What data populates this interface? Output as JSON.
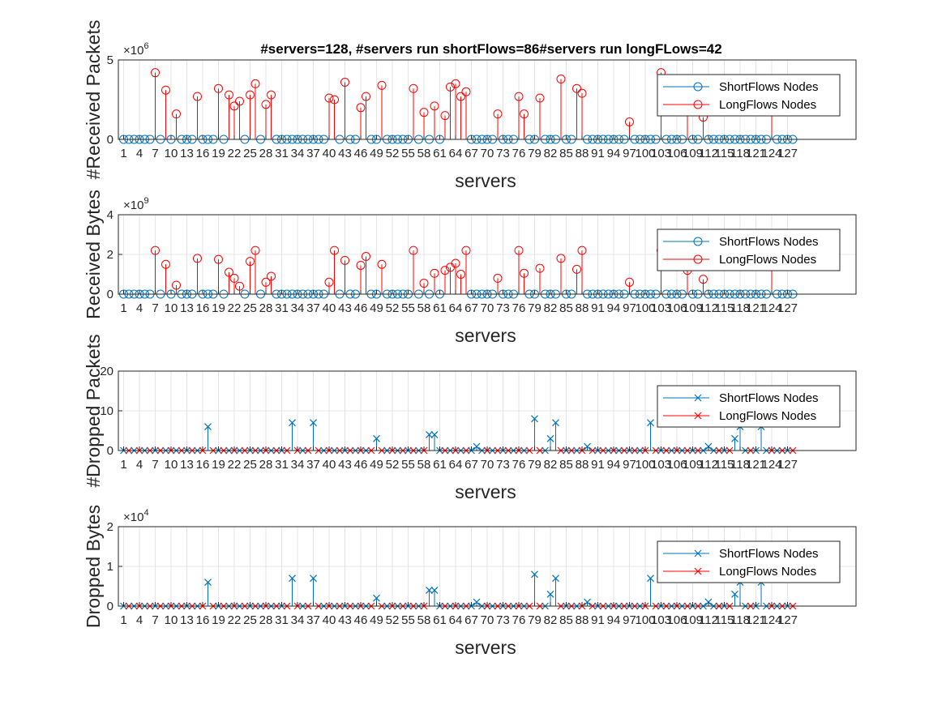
{
  "figure_title": "#servers=128,  #servers run shortFlows=86#servers run longFLows=42",
  "colors": {
    "short": "#0072BD",
    "long": "#FF0000",
    "axis": "#262626",
    "grid": "#dfdfdf"
  },
  "legend": {
    "short": "ShortFlows Nodes",
    "long": "LongFlows Nodes"
  },
  "chart_data": [
    {
      "type": "stem",
      "title": "#servers=128,  #servers run shortFlows=86#servers run longFLows=42",
      "xlabel": "servers",
      "ylabel": "#Received Packets",
      "exponent_label": "×10^6",
      "exp_base": "×10",
      "exp_power": "6",
      "marker": "circle",
      "xlim": [
        0,
        140
      ],
      "ylim": [
        0,
        5
      ],
      "yticks": [
        "0",
        "5"
      ],
      "xticks": [
        "1",
        "4",
        "7",
        "10",
        "13",
        "16",
        "19",
        "22",
        "25",
        "28",
        "31",
        "34",
        "37",
        "40",
        "43",
        "46",
        "49",
        "52",
        "55",
        "58",
        "61",
        "64",
        "67",
        "70",
        "73",
        "76",
        "79",
        "82",
        "85",
        "88",
        "91",
        "94",
        "97",
        "100",
        "103",
        "106",
        "109",
        "112",
        "115",
        "118",
        "121",
        "124",
        "127"
      ],
      "legend_position": "top-right",
      "series": [
        {
          "name": "LongFlows Nodes",
          "x": [
            7,
            9,
            11,
            15,
            19,
            21,
            22,
            23,
            25,
            26,
            28,
            29,
            40,
            41,
            43,
            46,
            47,
            50,
            56,
            58,
            60,
            62,
            63,
            64,
            65,
            66,
            72,
            76,
            77,
            80,
            84,
            87,
            88,
            97,
            103,
            108,
            111,
            124
          ],
          "y": [
            4.2,
            3.1,
            1.6,
            2.7,
            3.2,
            2.8,
            2.1,
            2.4,
            2.8,
            3.5,
            2.2,
            2.8,
            2.6,
            2.5,
            3.6,
            2.0,
            2.7,
            3.4,
            3.2,
            1.7,
            2.1,
            1.5,
            3.3,
            3.5,
            2.7,
            3.0,
            1.6,
            2.7,
            1.6,
            2.6,
            3.8,
            3.2,
            2.9,
            1.1,
            4.2,
            2.1,
            1.4,
            2.0
          ]
        }
      ]
    },
    {
      "type": "stem",
      "xlabel": "servers",
      "ylabel": "Received Bytes",
      "exponent_label": "×10^9",
      "exp_base": "×10",
      "exp_power": "9",
      "marker": "circle",
      "xlim": [
        0,
        140
      ],
      "ylim": [
        0,
        4
      ],
      "yticks": [
        "0",
        "2",
        "4"
      ],
      "xticks": [
        "1",
        "4",
        "7",
        "10",
        "13",
        "16",
        "19",
        "22",
        "25",
        "28",
        "31",
        "34",
        "37",
        "40",
        "43",
        "46",
        "49",
        "52",
        "55",
        "58",
        "61",
        "64",
        "67",
        "70",
        "73",
        "76",
        "79",
        "82",
        "85",
        "88",
        "91",
        "94",
        "97",
        "100",
        "103",
        "106",
        "109",
        "112",
        "115",
        "118",
        "121",
        "124",
        "127"
      ],
      "legend_position": "top-right",
      "series": [
        {
          "name": "LongFlows Nodes",
          "x": [
            7,
            9,
            11,
            15,
            19,
            21,
            22,
            23,
            25,
            26,
            28,
            29,
            40,
            41,
            43,
            46,
            47,
            50,
            56,
            58,
            60,
            62,
            63,
            64,
            65,
            66,
            72,
            76,
            77,
            80,
            84,
            87,
            88,
            97,
            103,
            108,
            111,
            124
          ],
          "y": [
            2.2,
            1.5,
            0.45,
            1.8,
            1.75,
            1.1,
            0.8,
            0.4,
            1.65,
            2.2,
            0.6,
            0.9,
            0.6,
            2.2,
            1.7,
            1.45,
            1.9,
            1.5,
            2.2,
            0.55,
            1.05,
            1.2,
            1.35,
            1.55,
            1.0,
            2.2,
            0.8,
            2.2,
            1.05,
            1.3,
            1.8,
            1.25,
            2.2,
            0.6,
            2.2,
            1.2,
            0.75,
            2.0
          ]
        }
      ]
    },
    {
      "type": "stem",
      "xlabel": "servers",
      "ylabel": "#Dropped Packets",
      "marker": "x",
      "xlim": [
        0,
        140
      ],
      "ylim": [
        0,
        20
      ],
      "yticks": [
        "0",
        "10",
        "20"
      ],
      "xticks": [
        "1",
        "4",
        "7",
        "10",
        "13",
        "16",
        "19",
        "22",
        "25",
        "28",
        "31",
        "34",
        "37",
        "40",
        "43",
        "46",
        "49",
        "52",
        "55",
        "58",
        "61",
        "64",
        "67",
        "70",
        "73",
        "76",
        "79",
        "82",
        "85",
        "88",
        "91",
        "94",
        "97",
        "100",
        "103",
        "106",
        "109",
        "112",
        "115",
        "118",
        "121",
        "124",
        "127"
      ],
      "legend_position": "top-right",
      "series": [
        {
          "name": "ShortFlows Nodes",
          "x": [
            17,
            33,
            37,
            49,
            59,
            60,
            68,
            79,
            82,
            83,
            89,
            101,
            112,
            117,
            118,
            122
          ],
          "y": [
            6,
            7,
            7,
            3,
            4,
            4,
            1,
            8,
            3,
            7,
            1,
            7,
            1,
            3,
            6,
            6
          ]
        }
      ]
    },
    {
      "type": "stem",
      "xlabel": "servers",
      "ylabel": "Dropped Bytes",
      "exponent_label": "×10^4",
      "exp_base": "×10",
      "exp_power": "4",
      "marker": "x",
      "xlim": [
        0,
        140
      ],
      "ylim": [
        0,
        2
      ],
      "yticks": [
        "0",
        "1",
        "2"
      ],
      "xticks": [
        "1",
        "4",
        "7",
        "10",
        "13",
        "16",
        "19",
        "22",
        "25",
        "28",
        "31",
        "34",
        "37",
        "40",
        "43",
        "46",
        "49",
        "52",
        "55",
        "58",
        "61",
        "64",
        "67",
        "70",
        "73",
        "76",
        "79",
        "82",
        "85",
        "88",
        "91",
        "94",
        "97",
        "100",
        "103",
        "106",
        "109",
        "112",
        "115",
        "118",
        "121",
        "124",
        "127"
      ],
      "legend_position": "top-right",
      "series": [
        {
          "name": "ShortFlows Nodes",
          "x": [
            17,
            33,
            37,
            49,
            59,
            60,
            68,
            79,
            82,
            83,
            89,
            101,
            112,
            117,
            118,
            122
          ],
          "y": [
            0.6,
            0.7,
            0.7,
            0.2,
            0.4,
            0.4,
            0.1,
            0.8,
            0.3,
            0.7,
            0.1,
            0.7,
            0.1,
            0.3,
            0.6,
            0.6
          ]
        }
      ]
    }
  ]
}
